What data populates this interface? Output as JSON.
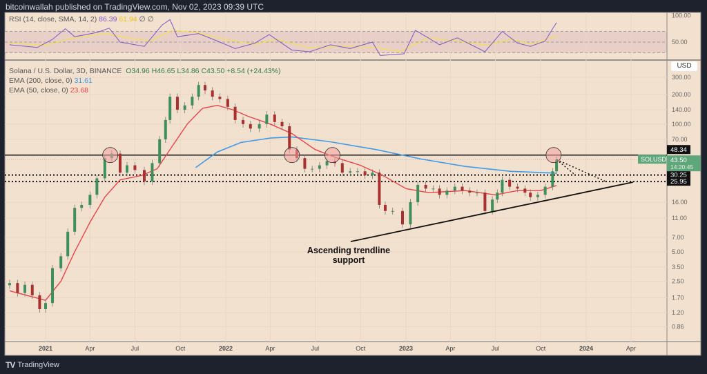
{
  "header": {
    "published": "bitcoinwallah published on TradingView.com, Nov 02, 2023 09:39 UTC"
  },
  "rsi_legend": {
    "label": "RSI (14, close, SMA, 14, 2)",
    "value": "86.39",
    "sma_value": "61.94",
    "extra": "∅ ∅"
  },
  "symbol_legend": {
    "title": "Solana / U.S. Dollar, 3D, BINANCE",
    "open": "O34.96",
    "high": "H46.65",
    "low": "L34.86",
    "close": "C43.50",
    "change": "+8.54 (+24.43%)"
  },
  "ema200_legend": {
    "label": "EMA (200, close, 0)",
    "value": "31.61"
  },
  "ema50_legend": {
    "label": "EMA (50, close, 0)",
    "value": "23.68"
  },
  "currency": "USD",
  "logo": "TradingView",
  "annotation": "Ascending trendline support",
  "colors": {
    "background": "#f3e1cf",
    "up": "#3f8f5c",
    "down": "#a8302e",
    "ema200": "#3d9be9",
    "ema50": "#e8424a",
    "rsi": "#7e57c2",
    "rsi_sma": "#f5e23c",
    "circle": "#f0a3a0"
  },
  "chart_data": [
    {
      "type": "candlestick",
      "title": "Solana / U.S. Dollar, 3D, BINANCE",
      "y_scale": "log",
      "ylim": [
        0.86,
        320
      ],
      "x_ticks": [
        {
          "label": "2021",
          "date": "2021-01-01",
          "bold": true
        },
        {
          "label": "Apr",
          "date": "2021-04-01"
        },
        {
          "label": "Jul",
          "date": "2021-07-01"
        },
        {
          "label": "Oct",
          "date": "2021-10-01"
        },
        {
          "label": "2022",
          "date": "2022-01-01",
          "bold": true
        },
        {
          "label": "Apr",
          "date": "2022-04-01"
        },
        {
          "label": "Jul",
          "date": "2022-07-01"
        },
        {
          "label": "Oct",
          "date": "2022-10-01"
        },
        {
          "label": "2023",
          "date": "2023-01-01",
          "bold": true
        },
        {
          "label": "Apr",
          "date": "2023-04-01"
        },
        {
          "label": "Jul",
          "date": "2023-07-01"
        },
        {
          "label": "Oct",
          "date": "2023-10-01"
        },
        {
          "label": "2024",
          "date": "2024-01-01",
          "bold": true
        },
        {
          "label": "Apr",
          "date": "2024-04-01"
        }
      ],
      "y_ticks": [
        "300.00",
        "200.00",
        "140.00",
        "100.00",
        "70.00",
        "16.00",
        "11.00",
        "7.00",
        "5.00",
        "3.50",
        "2.50",
        "1.70",
        "1.20",
        "0.86"
      ],
      "price_close": [
        [
          "2020-10-20",
          2.4
        ],
        [
          "2020-11-05",
          1.9
        ],
        [
          "2020-11-20",
          2.3
        ],
        [
          "2020-12-05",
          1.8
        ],
        [
          "2020-12-20",
          1.3
        ],
        [
          "2021-01-01",
          1.5
        ],
        [
          "2021-01-15",
          3.4
        ],
        [
          "2021-02-01",
          4.5
        ],
        [
          "2021-02-15",
          8
        ],
        [
          "2021-03-01",
          14
        ],
        [
          "2021-03-15",
          15
        ],
        [
          "2021-04-01",
          19
        ],
        [
          "2021-04-15",
          28
        ],
        [
          "2021-05-01",
          45
        ],
        [
          "2021-05-15",
          50
        ],
        [
          "2021-06-01",
          32
        ],
        [
          "2021-06-15",
          38
        ],
        [
          "2021-07-01",
          34
        ],
        [
          "2021-07-20",
          26
        ],
        [
          "2021-08-05",
          40
        ],
        [
          "2021-08-20",
          70
        ],
        [
          "2021-09-01",
          110
        ],
        [
          "2021-09-10",
          190
        ],
        [
          "2021-09-25",
          140
        ],
        [
          "2021-10-10",
          155
        ],
        [
          "2021-10-25",
          190
        ],
        [
          "2021-11-07",
          250
        ],
        [
          "2021-11-20",
          220
        ],
        [
          "2021-12-05",
          190
        ],
        [
          "2021-12-20",
          180
        ],
        [
          "2022-01-05",
          150
        ],
        [
          "2022-01-20",
          110
        ],
        [
          "2022-02-05",
          100
        ],
        [
          "2022-02-20",
          90
        ],
        [
          "2022-03-10",
          100
        ],
        [
          "2022-03-25",
          125
        ],
        [
          "2022-04-10",
          105
        ],
        [
          "2022-04-25",
          95
        ],
        [
          "2022-05-10",
          55
        ],
        [
          "2022-05-25",
          45
        ],
        [
          "2022-06-10",
          35
        ],
        [
          "2022-06-25",
          35
        ],
        [
          "2022-07-10",
          38
        ],
        [
          "2022-07-25",
          42
        ],
        [
          "2022-08-10",
          40
        ],
        [
          "2022-08-25",
          32
        ],
        [
          "2022-09-10",
          33
        ],
        [
          "2022-09-25",
          33
        ],
        [
          "2022-10-10",
          30
        ],
        [
          "2022-10-25",
          32
        ],
        [
          "2022-11-08",
          15
        ],
        [
          "2022-11-20",
          13
        ],
        [
          "2022-12-05",
          13
        ],
        [
          "2022-12-25",
          9.5
        ],
        [
          "2023-01-10",
          16
        ],
        [
          "2023-01-25",
          24
        ],
        [
          "2023-02-10",
          22
        ],
        [
          "2023-02-25",
          22
        ],
        [
          "2023-03-10",
          19
        ],
        [
          "2023-03-25",
          21
        ],
        [
          "2023-04-10",
          23
        ],
        [
          "2023-04-25",
          21
        ],
        [
          "2023-05-10",
          20
        ],
        [
          "2023-05-25",
          20
        ],
        [
          "2023-06-10",
          13
        ],
        [
          "2023-06-25",
          17
        ],
        [
          "2023-07-05",
          20
        ],
        [
          "2023-07-15",
          27
        ],
        [
          "2023-07-30",
          23
        ],
        [
          "2023-08-15",
          22
        ],
        [
          "2023-08-30",
          20
        ],
        [
          "2023-09-10",
          18
        ],
        [
          "2023-09-25",
          19
        ],
        [
          "2023-10-10",
          23
        ],
        [
          "2023-10-25",
          33
        ],
        [
          "2023-11-02",
          43.5
        ]
      ],
      "series": [
        {
          "name": "EMA (200, close, 0)",
          "points": [
            [
              "2021-11-01",
              36
            ],
            [
              "2021-12-15",
              52
            ],
            [
              "2022-02-01",
              65
            ],
            [
              "2022-04-01",
              72
            ],
            [
              "2022-05-15",
              74
            ],
            [
              "2022-08-01",
              66
            ],
            [
              "2022-11-01",
              55
            ],
            [
              "2023-02-01",
              44
            ],
            [
              "2023-05-01",
              37
            ],
            [
              "2023-08-01",
              33
            ],
            [
              "2023-11-02",
              31.61
            ]
          ]
        },
        {
          "name": "EMA (50, close, 0)",
          "points": [
            [
              "2020-10-20",
              2.0
            ],
            [
              "2021-01-01",
              1.6
            ],
            [
              "2021-02-01",
              2.5
            ],
            [
              "2021-03-01",
              5
            ],
            [
              "2021-04-01",
              10
            ],
            [
              "2021-05-01",
              18
            ],
            [
              "2021-06-01",
              27
            ],
            [
              "2021-07-15",
              30
            ],
            [
              "2021-08-15",
              35
            ],
            [
              "2021-09-15",
              60
            ],
            [
              "2021-10-15",
              100
            ],
            [
              "2021-11-15",
              145
            ],
            [
              "2021-12-15",
              155
            ],
            [
              "2022-01-15",
              140
            ],
            [
              "2022-02-15",
              120
            ],
            [
              "2022-04-01",
              100
            ],
            [
              "2022-05-15",
              80
            ],
            [
              "2022-07-01",
              55
            ],
            [
              "2022-08-15",
              45
            ],
            [
              "2022-10-01",
              38
            ],
            [
              "2022-11-15",
              30
            ],
            [
              "2023-01-01",
              22
            ],
            [
              "2023-02-15",
              20
            ],
            [
              "2023-05-01",
              21
            ],
            [
              "2023-07-01",
              19
            ],
            [
              "2023-08-15",
              21
            ],
            [
              "2023-10-01",
              21
            ],
            [
              "2023-11-02",
              23.68
            ]
          ]
        }
      ],
      "horizontal_levels": [
        {
          "value": 48.34,
          "label": "48.34",
          "style": "solid"
        },
        {
          "value": 30.25,
          "label": "30.25",
          "style": "dotted"
        },
        {
          "value": 25.95,
          "label": "25.95",
          "style": "dotted"
        }
      ],
      "last_price": {
        "symbol": "SOLUSD",
        "value": 43.5,
        "label": "43.50",
        "countdown": "14:20:45"
      },
      "trendline": [
        [
          "2022-09-11",
          6.35
        ],
        [
          "2024-04-05",
          25.6
        ]
      ],
      "projections": [
        [
          [
            "2023-11-02",
            43.5
          ],
          [
            "2023-12-10",
            30.25
          ]
        ],
        [
          [
            "2023-11-02",
            43.5
          ],
          [
            "2024-02-10",
            25.95
          ]
        ]
      ],
      "highlight_circles": [
        [
          "2021-05-12",
          48.34
        ],
        [
          "2022-05-15",
          48.34
        ],
        [
          "2022-08-05",
          48.34
        ],
        [
          "2023-10-27",
          48.34
        ]
      ]
    },
    {
      "type": "line",
      "title": "RSI (14, close, SMA, 14, 2)",
      "ylim": [
        0,
        100
      ],
      "y_ticks": [
        "100.00",
        "50.00"
      ],
      "bands": [
        30,
        70
      ],
      "series": [
        {
          "name": "RSI",
          "points": [
            [
              "2020-10-20",
              45
            ],
            [
              "2020-12-15",
              40
            ],
            [
              "2021-01-15",
              55
            ],
            [
              "2021-02-10",
              75
            ],
            [
              "2021-03-01",
              60
            ],
            [
              "2021-04-15",
              68
            ],
            [
              "2021-05-10",
              76
            ],
            [
              "2021-06-01",
              50
            ],
            [
              "2021-07-20",
              42
            ],
            [
              "2021-08-25",
              82
            ],
            [
              "2021-09-10",
              92
            ],
            [
              "2021-09-25",
              60
            ],
            [
              "2021-11-07",
              66
            ],
            [
              "2021-12-15",
              52
            ],
            [
              "2022-01-20",
              38
            ],
            [
              "2022-03-01",
              48
            ],
            [
              "2022-03-30",
              64
            ],
            [
              "2022-05-15",
              35
            ],
            [
              "2022-06-20",
              32
            ],
            [
              "2022-08-01",
              45
            ],
            [
              "2022-09-10",
              38
            ],
            [
              "2022-10-25",
              50
            ],
            [
              "2022-11-10",
              25
            ],
            [
              "2022-12-28",
              28
            ],
            [
              "2023-01-20",
              72
            ],
            [
              "2023-02-15",
              58
            ],
            [
              "2023-03-10",
              45
            ],
            [
              "2023-04-15",
              58
            ],
            [
              "2023-06-10",
              32
            ],
            [
              "2023-07-15",
              70
            ],
            [
              "2023-08-15",
              48
            ],
            [
              "2023-09-10",
              42
            ],
            [
              "2023-10-10",
              52
            ],
            [
              "2023-10-25",
              75
            ],
            [
              "2023-11-02",
              86.39
            ]
          ]
        },
        {
          "name": "SMA",
          "points": [
            [
              "2020-10-20",
              48
            ],
            [
              "2021-01-01",
              44
            ],
            [
              "2021-03-01",
              58
            ],
            [
              "2021-05-01",
              66
            ],
            [
              "2021-06-15",
              58
            ],
            [
              "2021-08-01",
              52
            ],
            [
              "2021-09-15",
              72
            ],
            [
              "2021-11-01",
              68
            ],
            [
              "2022-01-01",
              55
            ],
            [
              "2022-03-01",
              46
            ],
            [
              "2022-04-15",
              55
            ],
            [
              "2022-06-15",
              40
            ],
            [
              "2022-09-01",
              42
            ],
            [
              "2022-11-01",
              40
            ],
            [
              "2022-12-20",
              32
            ],
            [
              "2023-02-15",
              58
            ],
            [
              "2023-04-15",
              52
            ],
            [
              "2023-06-15",
              44
            ],
            [
              "2023-08-01",
              55
            ],
            [
              "2023-09-15",
              46
            ],
            [
              "2023-11-02",
              61.94
            ]
          ]
        }
      ]
    }
  ]
}
